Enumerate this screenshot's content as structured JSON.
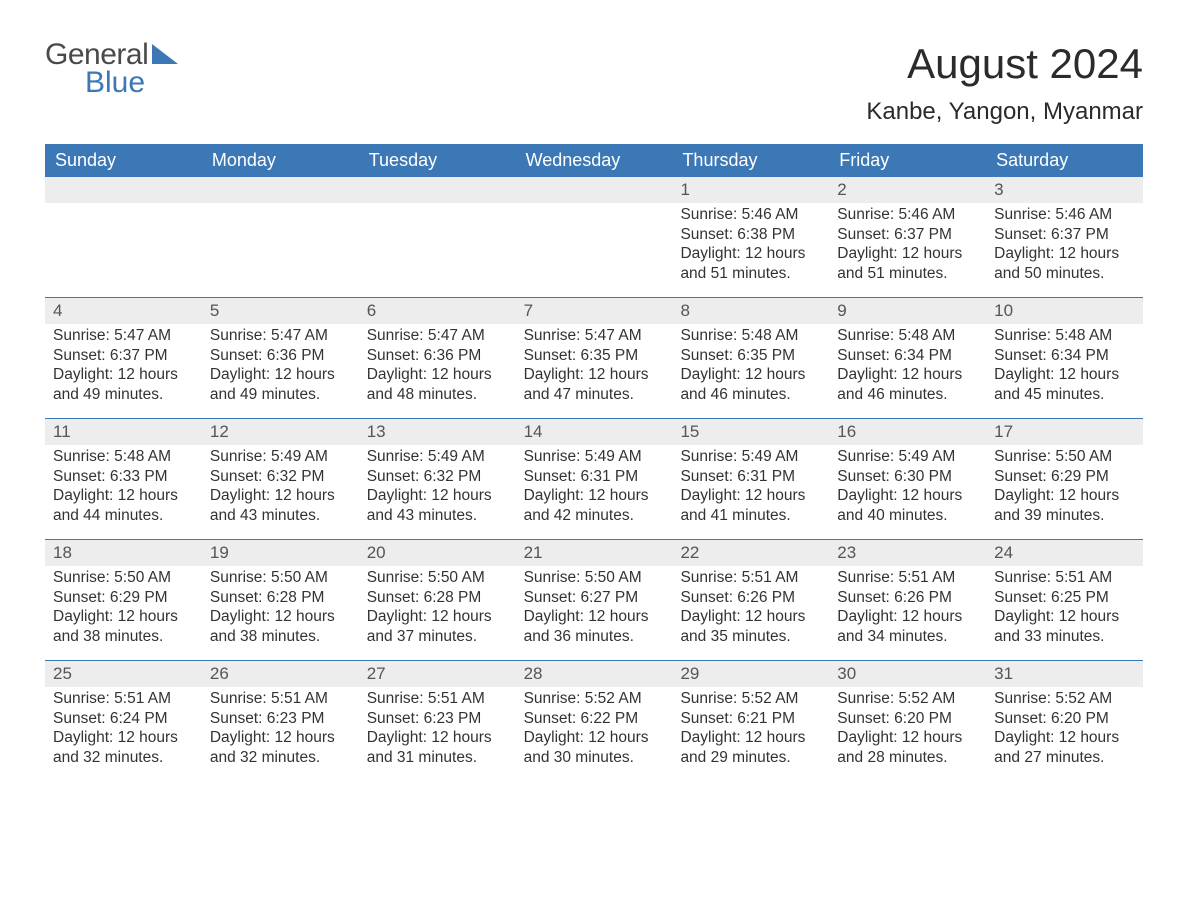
{
  "logo": {
    "text1": "General",
    "text2": "Blue"
  },
  "title": "August 2024",
  "location": "Kanbe, Yangon, Myanmar",
  "colors": {
    "header_bg": "#3b78b5",
    "header_text": "#ffffff",
    "daynum_bg": "#ededed",
    "daynum_text": "#555555",
    "body_text": "#333333",
    "divider": "#3b78b5",
    "page_bg": "#ffffff"
  },
  "typography": {
    "title_fontsize": 42,
    "location_fontsize": 24,
    "header_fontsize": 18,
    "cell_fontsize": 15.5,
    "daynum_fontsize": 17
  },
  "layout": {
    "columns": 7,
    "rows": 5,
    "week_start": "Sunday",
    "first_day_column_index": 4
  },
  "day_names": [
    "Sunday",
    "Monday",
    "Tuesday",
    "Wednesday",
    "Thursday",
    "Friday",
    "Saturday"
  ],
  "labels": {
    "sunrise": "Sunrise: ",
    "sunset": "Sunset: ",
    "daylight": "Daylight: "
  },
  "days": [
    {
      "n": 1,
      "sunrise": "5:46 AM",
      "sunset": "6:38 PM",
      "daylight": "12 hours and 51 minutes."
    },
    {
      "n": 2,
      "sunrise": "5:46 AM",
      "sunset": "6:37 PM",
      "daylight": "12 hours and 51 minutes."
    },
    {
      "n": 3,
      "sunrise": "5:46 AM",
      "sunset": "6:37 PM",
      "daylight": "12 hours and 50 minutes."
    },
    {
      "n": 4,
      "sunrise": "5:47 AM",
      "sunset": "6:37 PM",
      "daylight": "12 hours and 49 minutes."
    },
    {
      "n": 5,
      "sunrise": "5:47 AM",
      "sunset": "6:36 PM",
      "daylight": "12 hours and 49 minutes."
    },
    {
      "n": 6,
      "sunrise": "5:47 AM",
      "sunset": "6:36 PM",
      "daylight": "12 hours and 48 minutes."
    },
    {
      "n": 7,
      "sunrise": "5:47 AM",
      "sunset": "6:35 PM",
      "daylight": "12 hours and 47 minutes."
    },
    {
      "n": 8,
      "sunrise": "5:48 AM",
      "sunset": "6:35 PM",
      "daylight": "12 hours and 46 minutes."
    },
    {
      "n": 9,
      "sunrise": "5:48 AM",
      "sunset": "6:34 PM",
      "daylight": "12 hours and 46 minutes."
    },
    {
      "n": 10,
      "sunrise": "5:48 AM",
      "sunset": "6:34 PM",
      "daylight": "12 hours and 45 minutes."
    },
    {
      "n": 11,
      "sunrise": "5:48 AM",
      "sunset": "6:33 PM",
      "daylight": "12 hours and 44 minutes."
    },
    {
      "n": 12,
      "sunrise": "5:49 AM",
      "sunset": "6:32 PM",
      "daylight": "12 hours and 43 minutes."
    },
    {
      "n": 13,
      "sunrise": "5:49 AM",
      "sunset": "6:32 PM",
      "daylight": "12 hours and 43 minutes."
    },
    {
      "n": 14,
      "sunrise": "5:49 AM",
      "sunset": "6:31 PM",
      "daylight": "12 hours and 42 minutes."
    },
    {
      "n": 15,
      "sunrise": "5:49 AM",
      "sunset": "6:31 PM",
      "daylight": "12 hours and 41 minutes."
    },
    {
      "n": 16,
      "sunrise": "5:49 AM",
      "sunset": "6:30 PM",
      "daylight": "12 hours and 40 minutes."
    },
    {
      "n": 17,
      "sunrise": "5:50 AM",
      "sunset": "6:29 PM",
      "daylight": "12 hours and 39 minutes."
    },
    {
      "n": 18,
      "sunrise": "5:50 AM",
      "sunset": "6:29 PM",
      "daylight": "12 hours and 38 minutes."
    },
    {
      "n": 19,
      "sunrise": "5:50 AM",
      "sunset": "6:28 PM",
      "daylight": "12 hours and 38 minutes."
    },
    {
      "n": 20,
      "sunrise": "5:50 AM",
      "sunset": "6:28 PM",
      "daylight": "12 hours and 37 minutes."
    },
    {
      "n": 21,
      "sunrise": "5:50 AM",
      "sunset": "6:27 PM",
      "daylight": "12 hours and 36 minutes."
    },
    {
      "n": 22,
      "sunrise": "5:51 AM",
      "sunset": "6:26 PM",
      "daylight": "12 hours and 35 minutes."
    },
    {
      "n": 23,
      "sunrise": "5:51 AM",
      "sunset": "6:26 PM",
      "daylight": "12 hours and 34 minutes."
    },
    {
      "n": 24,
      "sunrise": "5:51 AM",
      "sunset": "6:25 PM",
      "daylight": "12 hours and 33 minutes."
    },
    {
      "n": 25,
      "sunrise": "5:51 AM",
      "sunset": "6:24 PM",
      "daylight": "12 hours and 32 minutes."
    },
    {
      "n": 26,
      "sunrise": "5:51 AM",
      "sunset": "6:23 PM",
      "daylight": "12 hours and 32 minutes."
    },
    {
      "n": 27,
      "sunrise": "5:51 AM",
      "sunset": "6:23 PM",
      "daylight": "12 hours and 31 minutes."
    },
    {
      "n": 28,
      "sunrise": "5:52 AM",
      "sunset": "6:22 PM",
      "daylight": "12 hours and 30 minutes."
    },
    {
      "n": 29,
      "sunrise": "5:52 AM",
      "sunset": "6:21 PM",
      "daylight": "12 hours and 29 minutes."
    },
    {
      "n": 30,
      "sunrise": "5:52 AM",
      "sunset": "6:20 PM",
      "daylight": "12 hours and 28 minutes."
    },
    {
      "n": 31,
      "sunrise": "5:52 AM",
      "sunset": "6:20 PM",
      "daylight": "12 hours and 27 minutes."
    }
  ]
}
